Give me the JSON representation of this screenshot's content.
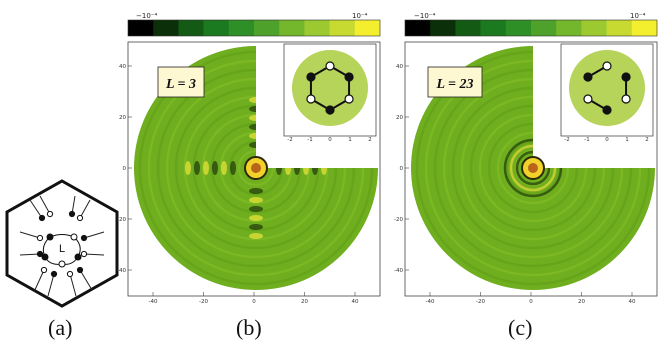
{
  "captions": [
    "(a)",
    "(b)",
    "(c)"
  ],
  "panels": [
    {
      "id": "b",
      "label": "L = 3",
      "colorbar": {
        "min_label": "−10⁻⁴",
        "max_label": "10⁻⁴"
      },
      "x_ticks": [
        "-40",
        "-20",
        "0",
        "20",
        "40"
      ],
      "y_ticks": [
        "40",
        "20",
        "0",
        "-20",
        "-40"
      ],
      "inset_x_ticks": [
        "-2",
        "-1",
        "0",
        "1",
        "2"
      ],
      "inset_y_ticks": [
        "2",
        "1",
        "0",
        "-1",
        "-2"
      ]
    },
    {
      "id": "c",
      "label": "L = 23",
      "colorbar": {
        "min_label": "−10⁻⁴",
        "max_label": "10⁻⁴"
      },
      "x_ticks": [
        "-40",
        "-20",
        "0",
        "20",
        "40"
      ],
      "y_ticks": [
        "40",
        "20",
        "0",
        "-20",
        "-40"
      ],
      "inset_x_ticks": [
        "-2",
        "-1",
        "0",
        "1",
        "2"
      ],
      "inset_y_ticks": [
        "2",
        "1",
        "0",
        "-1",
        "-2"
      ]
    }
  ],
  "diagram_a": {
    "center_label": "L"
  },
  "colors": {
    "green_bg": "#6fae1e",
    "colorbar": [
      "#000000",
      "#0b2f08",
      "#135a14",
      "#1b7a1f",
      "#2d8f25",
      "#4ea12a",
      "#74b62c",
      "#9bc92f",
      "#c7da32",
      "#f3ee2e"
    ],
    "inset_disk": "#b6d35a"
  }
}
